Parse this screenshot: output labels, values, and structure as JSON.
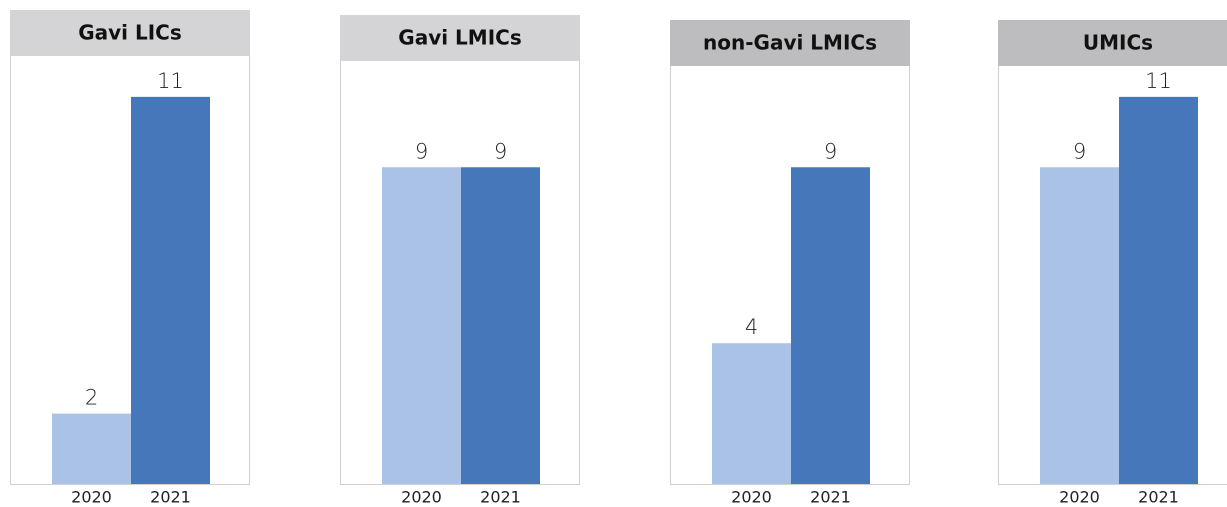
{
  "chart_data": [
    {
      "type": "bar",
      "title": "Gavi LICs",
      "header_color": "#d4d4d6",
      "categories": [
        "2020",
        "2021"
      ],
      "values": [
        2,
        11
      ],
      "colors": [
        "#a9c2e6",
        "#4677bb"
      ],
      "ylim": [
        0,
        12.9
      ]
    },
    {
      "type": "bar",
      "title": "Gavi LMICs",
      "header_color": "#d4d4d6",
      "categories": [
        "2020",
        "2021"
      ],
      "values": [
        9,
        9
      ],
      "colors": [
        "#a9c2e6",
        "#4677bb"
      ],
      "ylim": [
        0,
        12.9
      ]
    },
    {
      "type": "bar",
      "title": "non-Gavi LMICs",
      "header_color": "#bdbdbf",
      "categories": [
        "2020",
        "2021"
      ],
      "values": [
        4,
        9
      ],
      "colors": [
        "#a9c2e6",
        "#4677bb"
      ],
      "ylim": [
        0,
        12.9
      ]
    },
    {
      "type": "bar",
      "title": "UMICs",
      "header_color": "#bdbdbf",
      "categories": [
        "2020",
        "2021"
      ],
      "values": [
        9,
        11
      ],
      "colors": [
        "#a9c2e6",
        "#4677bb"
      ],
      "ylim": [
        0,
        12.9
      ]
    }
  ]
}
